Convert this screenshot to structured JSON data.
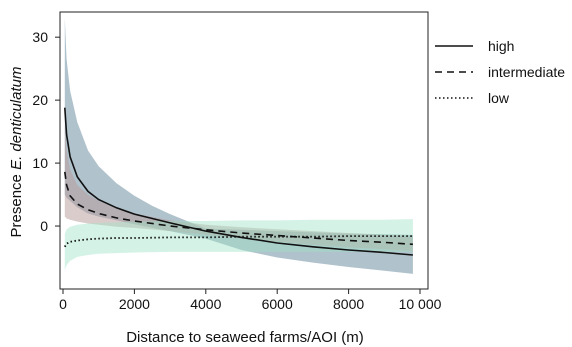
{
  "chart_data": {
    "type": "line",
    "xlabel": "Distance to seaweed farms/AOI (m)",
    "ylabel_prefix": "Presence ",
    "ylabel_species": "E. denticulatum",
    "xlim": [
      0,
      10000
    ],
    "ylim": [
      -10,
      34
    ],
    "x_ticks": [
      {
        "value": 0,
        "label": "0"
      },
      {
        "value": 2000,
        "label": "2000"
      },
      {
        "value": 4000,
        "label": "4000"
      },
      {
        "value": 6000,
        "label": "6000"
      },
      {
        "value": 8000,
        "label": "8000"
      },
      {
        "value": 10000,
        "label": "10 000"
      }
    ],
    "y_ticks": [
      {
        "value": 0,
        "label": "0"
      },
      {
        "value": 10,
        "label": "10"
      },
      {
        "value": 20,
        "label": "20"
      },
      {
        "value": 30,
        "label": "30"
      }
    ],
    "grid": false,
    "legend_position": "right",
    "series": [
      {
        "name": "high",
        "line_style": "solid",
        "band_color": "#6f8fa3",
        "x": [
          50,
          100,
          200,
          400,
          700,
          1000,
          1500,
          2000,
          2500,
          3000,
          4000,
          5000,
          6000,
          7000,
          8000,
          9000,
          9800
        ],
        "y": [
          18.8,
          14.5,
          11.0,
          7.8,
          5.5,
          4.2,
          2.9,
          1.9,
          1.2,
          0.5,
          -0.8,
          -1.8,
          -2.7,
          -3.3,
          -3.8,
          -4.2,
          -4.6
        ],
        "lower": [
          5.0,
          4.5,
          4.0,
          3.0,
          2.0,
          1.5,
          0.9,
          0.3,
          -0.3,
          -0.8,
          -2.0,
          -3.8,
          -5.0,
          -5.8,
          -6.5,
          -7.1,
          -7.6
        ],
        "upper": [
          33.0,
          26.5,
          21.5,
          16.5,
          12.0,
          9.5,
          6.8,
          4.8,
          3.2,
          1.9,
          -0.4,
          -0.6,
          -0.8,
          -1.0,
          -1.2,
          -1.3,
          -1.4
        ]
      },
      {
        "name": "intermediate",
        "line_style": "dashed",
        "band_color": "#b89a9a",
        "x": [
          50,
          100,
          200,
          400,
          700,
          1000,
          1500,
          2000,
          3000,
          4000,
          5000,
          6000,
          7000,
          8000,
          9000,
          9800
        ],
        "y": [
          8.6,
          6.5,
          4.8,
          3.5,
          2.6,
          2.0,
          1.3,
          0.8,
          0.0,
          -0.6,
          -1.1,
          -1.5,
          -1.9,
          -2.3,
          -2.6,
          -2.9
        ],
        "lower": [
          1.5,
          1.2,
          1.0,
          0.7,
          0.4,
          0.2,
          -0.1,
          -0.3,
          -0.8,
          -1.4,
          -2.0,
          -2.5,
          -3.0,
          -3.4,
          -3.7,
          -4.0
        ],
        "upper": [
          16.0,
          12.0,
          9.0,
          6.5,
          5.0,
          4.0,
          2.8,
          2.0,
          0.9,
          0.2,
          -0.2,
          -0.5,
          -0.8,
          -1.1,
          -1.4,
          -1.7
        ]
      },
      {
        "name": "low",
        "line_style": "dotted",
        "band_color": "#9fe3c6",
        "x": [
          50,
          100,
          200,
          400,
          700,
          1000,
          1500,
          2000,
          3000,
          4000,
          5000,
          6000,
          7000,
          8000,
          9000,
          9800
        ],
        "y": [
          -3.3,
          -2.8,
          -2.5,
          -2.3,
          -2.1,
          -2.0,
          -1.9,
          -1.9,
          -1.8,
          -1.8,
          -1.7,
          -1.7,
          -1.7,
          -1.6,
          -1.6,
          -1.6
        ],
        "lower": [
          -7.0,
          -6.2,
          -5.5,
          -4.9,
          -4.6,
          -4.4,
          -4.3,
          -4.2,
          -4.1,
          -4.1,
          -4.1,
          -4.1,
          -4.1,
          -4.1,
          -4.1,
          -4.1
        ],
        "upper": [
          -1.2,
          -0.5,
          -0.1,
          0.2,
          0.4,
          0.5,
          0.6,
          0.7,
          0.8,
          0.8,
          0.9,
          0.9,
          1.0,
          1.0,
          1.0,
          1.1
        ]
      }
    ]
  }
}
